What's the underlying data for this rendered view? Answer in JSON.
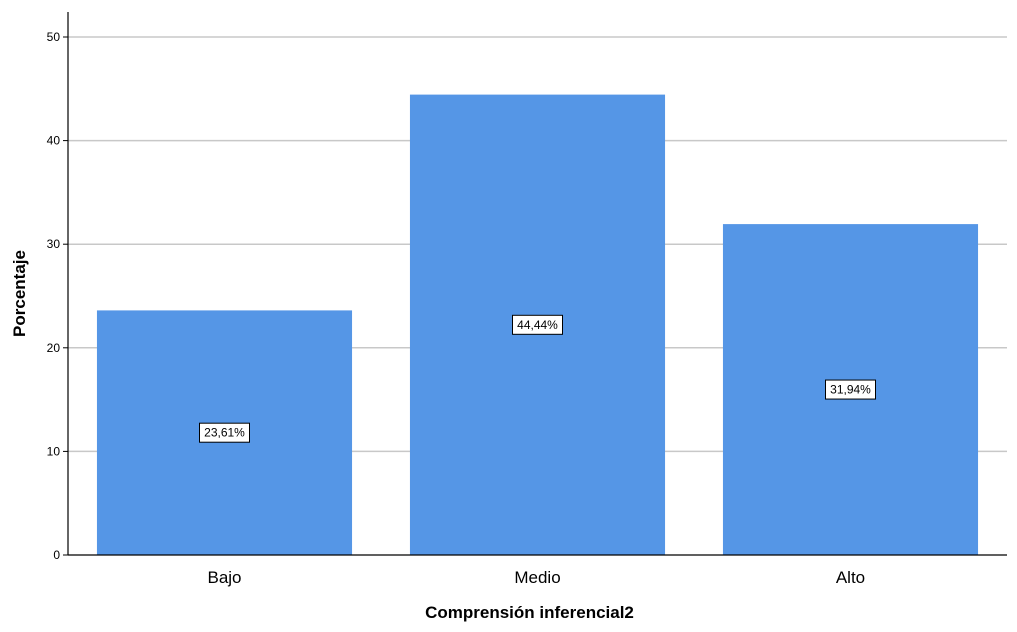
{
  "chart_data": {
    "type": "bar",
    "categories": [
      "Bajo",
      "Medio",
      "Alto"
    ],
    "values": [
      23.61,
      44.44,
      31.94
    ],
    "data_labels": [
      "23,61%",
      "44,44%",
      "31,94%"
    ],
    "xlabel": "Comprensión inferencial2",
    "ylabel": "Porcentaje",
    "ylim": [
      0,
      50
    ],
    "yticks": [
      "0",
      "10",
      "20",
      "30",
      "40",
      "50"
    ],
    "grid": true,
    "colors": {
      "bar": "#5596e6",
      "grid": "#c8c8c8",
      "axis": "#000000"
    }
  }
}
